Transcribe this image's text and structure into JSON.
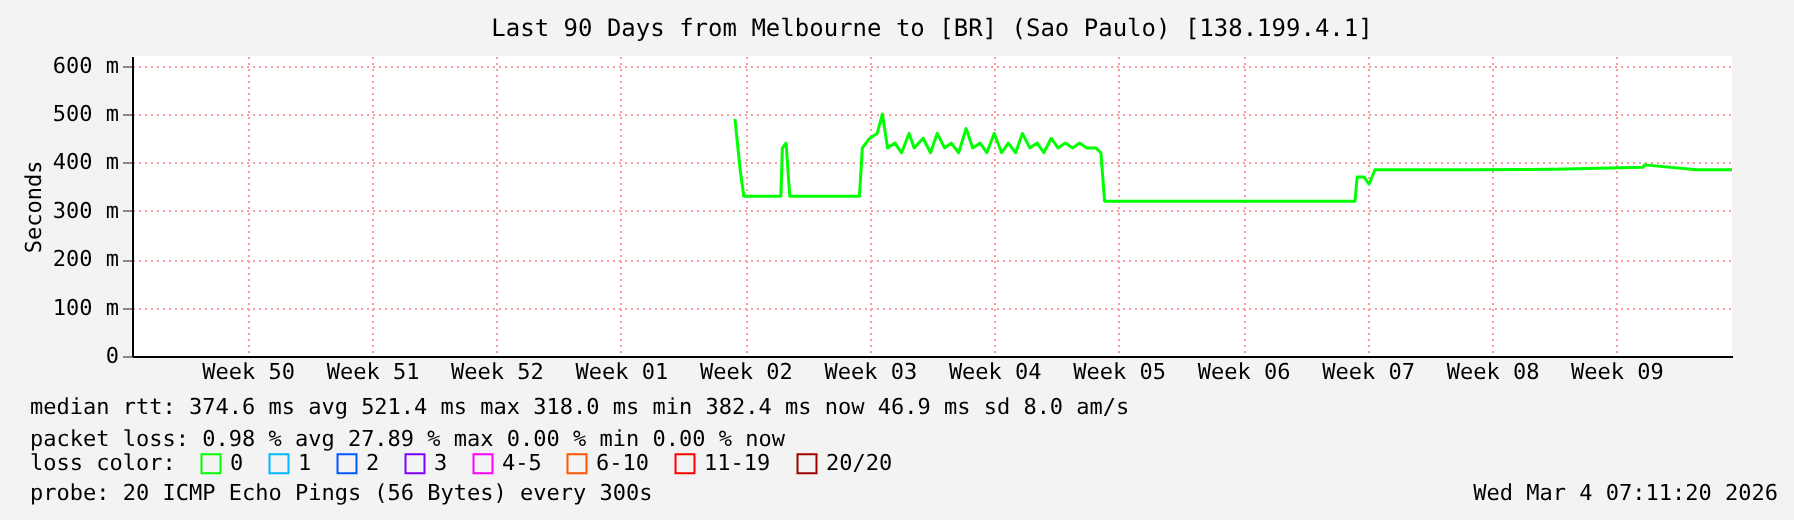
{
  "chart_data": {
    "type": "line",
    "title": "Last 90 Days from Melbourne to [BR] (Sao Paulo) [138.199.4.1]",
    "ylabel": "Seconds",
    "xlim": [
      "2025-12-05T00:00",
      "2026-03-05T00:00"
    ],
    "ylim": [
      0,
      620
    ],
    "xticks": [
      {
        "value": "2025-12-11T12:00",
        "label": "Week 50"
      },
      {
        "value": "2025-12-18T12:00",
        "label": "Week 51"
      },
      {
        "value": "2025-12-25T12:00",
        "label": "Week 52"
      },
      {
        "value": "2026-01-01T12:00",
        "label": "Week 01"
      },
      {
        "value": "2026-01-08T12:00",
        "label": "Week 02"
      },
      {
        "value": "2026-01-15T12:00",
        "label": "Week 03"
      },
      {
        "value": "2026-01-22T12:00",
        "label": "Week 04"
      },
      {
        "value": "2026-01-29T12:00",
        "label": "Week 05"
      },
      {
        "value": "2026-02-05T12:00",
        "label": "Week 06"
      },
      {
        "value": "2026-02-12T12:00",
        "label": "Week 07"
      },
      {
        "value": "2026-02-19T12:00",
        "label": "Week 08"
      },
      {
        "value": "2026-02-26T12:00",
        "label": "Week 09"
      }
    ],
    "yticks": [
      0,
      {
        "value": 100,
        "label": "100 m"
      },
      {
        "value": 200,
        "label": "200 m"
      },
      {
        "value": 300,
        "label": "300 m"
      },
      {
        "value": 400,
        "label": "400 m"
      },
      {
        "value": 500,
        "label": "500 m"
      },
      {
        "value": 600,
        "label": "600 m"
      }
    ],
    "grid": true,
    "legend": "bottom",
    "legend_title": "loss color:",
    "marker": "none",
    "line_style": "solid",
    "series": [
      {
        "name": "0",
        "color": "#00ff00",
        "x": [
          "2026-01-07T22:00",
          "2026-01-08T00:00",
          "2026-01-08T05:00",
          "2026-01-08T10:00",
          "2026-01-10T12:00",
          "2026-01-10T14:00",
          "2026-01-10T19:00",
          "2026-01-11T00:00",
          "2026-01-14T22:00",
          "2026-01-15T02:00",
          "2026-01-15T12:00",
          "2026-01-15T22:00",
          "2026-01-16T05:00",
          "2026-01-16T12:00",
          "2026-01-16T22:00",
          "2026-01-17T07:00",
          "2026-01-17T17:00",
          "2026-01-18T00:00",
          "2026-01-18T12:00",
          "2026-01-18T22:00",
          "2026-01-19T07:00",
          "2026-01-19T17:00",
          "2026-01-20T02:00",
          "2026-01-20T12:00",
          "2026-01-20T22:00",
          "2026-01-21T07:00",
          "2026-01-21T17:00",
          "2026-01-22T02:00",
          "2026-01-22T12:00",
          "2026-01-22T22:00",
          "2026-01-23T07:00",
          "2026-01-23T17:00",
          "2026-01-24T02:00",
          "2026-01-24T12:00",
          "2026-01-24T22:00",
          "2026-01-25T07:00",
          "2026-01-25T17:00",
          "2026-01-26T02:00",
          "2026-01-26T12:00",
          "2026-01-26T22:00",
          "2026-01-27T07:00",
          "2026-01-27T17:00",
          "2026-01-28T05:00",
          "2026-01-28T12:00",
          "2026-01-28T17:00",
          "2026-02-03T00:00",
          "2026-02-08T00:00",
          "2026-02-11T19:00",
          "2026-02-11T22:00",
          "2026-02-12T07:00",
          "2026-02-12T14:00",
          "2026-02-12T22:00",
          "2026-02-18T00:00",
          "2026-02-23T00:00",
          "2026-02-28T00:00",
          "2026-02-28T02:00",
          "2026-03-03T00:00",
          "2026-03-05T00:00"
        ],
        "values": [
          490,
          460,
          385,
          330,
          330,
          430,
          440,
          330,
          330,
          430,
          450,
          460,
          500,
          430,
          440,
          420,
          460,
          430,
          450,
          420,
          460,
          430,
          440,
          420,
          470,
          430,
          440,
          420,
          460,
          420,
          440,
          420,
          460,
          430,
          440,
          420,
          450,
          430,
          440,
          430,
          440,
          430,
          430,
          420,
          320,
          320,
          320,
          320,
          370,
          370,
          355,
          385,
          385,
          386,
          390,
          395,
          385,
          385
        ]
      },
      {
        "name": "1",
        "color": "#00b8ff"
      },
      {
        "name": "2",
        "color": "#0059ff"
      },
      {
        "name": "3",
        "color": "#7e00ff"
      },
      {
        "name": "4-5",
        "color": "#ff00ff"
      },
      {
        "name": "6-10",
        "color": "#ff5500"
      },
      {
        "name": "11-19",
        "color": "#ff0000"
      },
      {
        "name": "20/20",
        "color": "#a10000"
      }
    ],
    "annotations": [
      "median rtt:  374.6 ms avg  521.4 ms max  318.0 ms min  382.4 ms now  46.9 ms sd  8.0   am/s",
      "packet loss: 0.98 % avg  27.89 % max  0.00 % min  0.00 % now",
      "probe:       20 ICMP Echo Pings (56 Bytes) every 300s",
      "Wed Mar  4 07:11:20 2026"
    ]
  }
}
